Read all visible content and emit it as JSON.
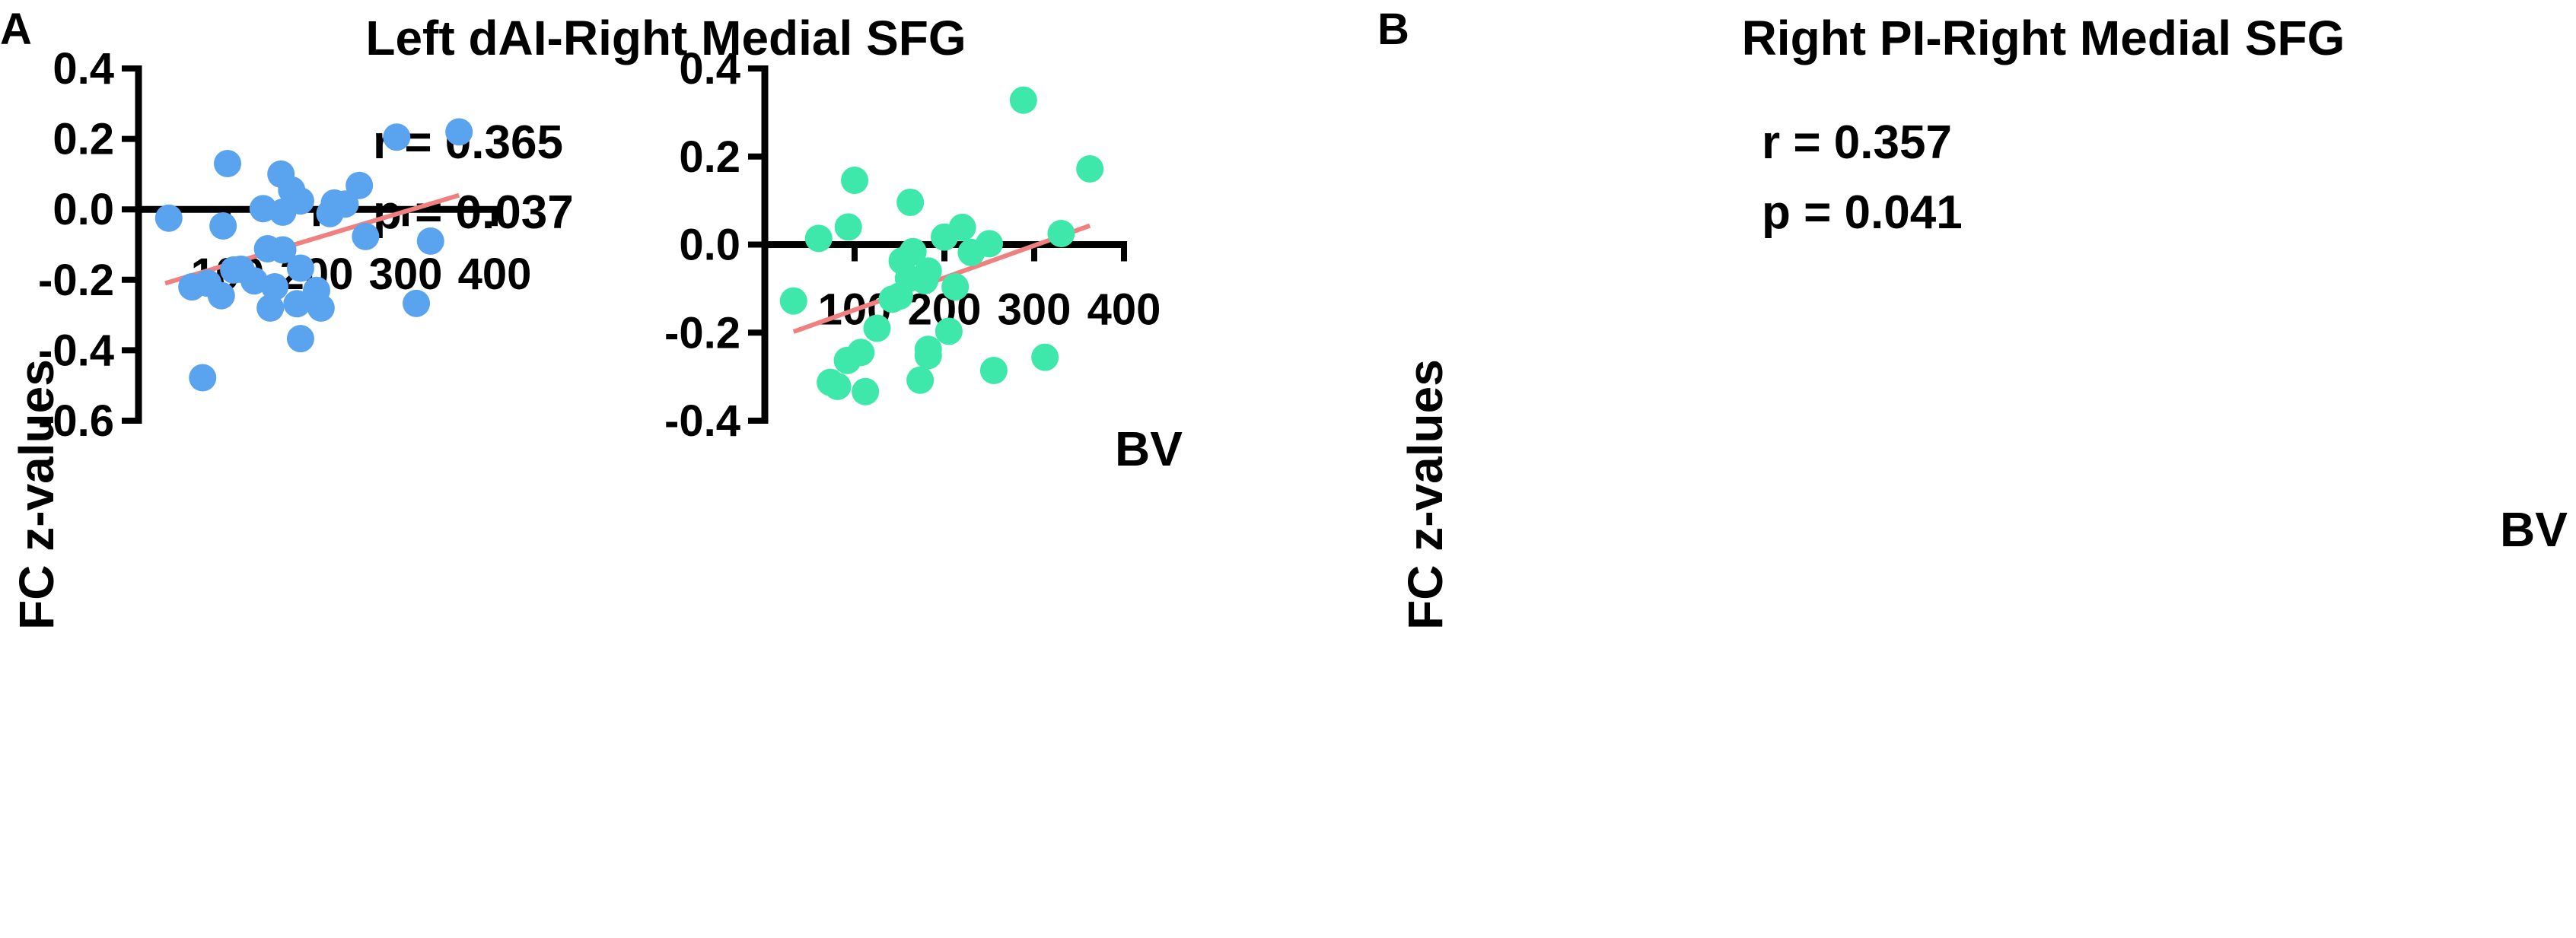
{
  "colors": {
    "panel_a_points": "#5aa3ee",
    "panel_b_points": "#3ee8aa",
    "fit_line": "#f08080",
    "axis": "#000000"
  },
  "chart_data": [
    {
      "panel": "A",
      "type": "scatter",
      "title": "Left dAI-Right Medial SFG",
      "xlabel": "BV",
      "ylabel": "FC z-values",
      "stat_r": "r = 0.365",
      "stat_p": "p = 0.037",
      "xlim": [
        0,
        400
      ],
      "ylim": [
        -0.6,
        0.4
      ],
      "xticks": [
        100,
        200,
        300,
        400
      ],
      "xtick_labels": [
        "100",
        "200",
        "300",
        "400"
      ],
      "yticks": [
        0.4,
        0.2,
        0.0,
        -0.2,
        -0.4,
        -0.6
      ],
      "ytick_labels": [
        "0.4",
        "0.2",
        "0.0",
        "-0.2",
        "-0.4",
        "-0.6"
      ],
      "points": [
        {
          "x": 34,
          "y": -0.025
        },
        {
          "x": 95,
          "y": -0.047
        },
        {
          "x": 100,
          "y": 0.13
        },
        {
          "x": 160,
          "y": 0.1
        },
        {
          "x": 172,
          "y": 0.055
        },
        {
          "x": 182,
          "y": 0.024
        },
        {
          "x": 140,
          "y": 0.002
        },
        {
          "x": 162,
          "y": -0.008
        },
        {
          "x": 220,
          "y": 0.018
        },
        {
          "x": 232,
          "y": 0.015
        },
        {
          "x": 248,
          "y": 0.068
        },
        {
          "x": 215,
          "y": -0.012
        },
        {
          "x": 255,
          "y": -0.077
        },
        {
          "x": 290,
          "y": 0.205
        },
        {
          "x": 360,
          "y": 0.22
        },
        {
          "x": 145,
          "y": -0.112
        },
        {
          "x": 162,
          "y": -0.115
        },
        {
          "x": 328,
          "y": -0.09
        },
        {
          "x": 107,
          "y": -0.172
        },
        {
          "x": 115,
          "y": -0.17
        },
        {
          "x": 130,
          "y": -0.203
        },
        {
          "x": 182,
          "y": -0.167
        },
        {
          "x": 60,
          "y": -0.22
        },
        {
          "x": 78,
          "y": -0.21
        },
        {
          "x": 93,
          "y": -0.245
        },
        {
          "x": 153,
          "y": -0.22
        },
        {
          "x": 200,
          "y": -0.23
        },
        {
          "x": 148,
          "y": -0.28
        },
        {
          "x": 178,
          "y": -0.268
        },
        {
          "x": 205,
          "y": -0.28
        },
        {
          "x": 312,
          "y": -0.267
        },
        {
          "x": 182,
          "y": -0.367
        },
        {
          "x": 72,
          "y": -0.478
        }
      ],
      "fit": {
        "x1": 30,
        "y1": -0.21,
        "x2": 360,
        "y2": 0.04
      }
    },
    {
      "panel": "B",
      "type": "scatter",
      "title": "Right PI-Right Medial SFG",
      "xlabel": "BV",
      "ylabel": "FC z-values",
      "stat_r": "r = 0.357",
      "stat_p": "p = 0.041",
      "xlim": [
        0,
        400
      ],
      "ylim": [
        -0.4,
        0.4
      ],
      "xticks": [
        100,
        200,
        300,
        400
      ],
      "xtick_labels": [
        "100",
        "200",
        "300",
        "400"
      ],
      "yticks": [
        0.4,
        0.2,
        0.0,
        -0.2,
        -0.4
      ],
      "ytick_labels": [
        "0.4",
        "0.2",
        "0.0",
        "-0.2",
        "-0.4"
      ],
      "points": [
        {
          "x": 60,
          "y": 0.014
        },
        {
          "x": 93,
          "y": 0.04
        },
        {
          "x": 100,
          "y": 0.146
        },
        {
          "x": 162,
          "y": 0.096
        },
        {
          "x": 200,
          "y": 0.017
        },
        {
          "x": 220,
          "y": 0.039
        },
        {
          "x": 250,
          "y": 0.002
        },
        {
          "x": 288,
          "y": 0.328
        },
        {
          "x": 330,
          "y": 0.025
        },
        {
          "x": 362,
          "y": 0.172
        },
        {
          "x": 165,
          "y": -0.016
        },
        {
          "x": 153,
          "y": -0.037
        },
        {
          "x": 230,
          "y": -0.018
        },
        {
          "x": 160,
          "y": -0.077
        },
        {
          "x": 182,
          "y": -0.06
        },
        {
          "x": 178,
          "y": -0.082
        },
        {
          "x": 212,
          "y": -0.096
        },
        {
          "x": 150,
          "y": -0.117
        },
        {
          "x": 142,
          "y": -0.124
        },
        {
          "x": 32,
          "y": -0.128
        },
        {
          "x": 125,
          "y": -0.19
        },
        {
          "x": 205,
          "y": -0.197
        },
        {
          "x": 182,
          "y": -0.238
        },
        {
          "x": 182,
          "y": -0.252
        },
        {
          "x": 107,
          "y": -0.245
        },
        {
          "x": 92,
          "y": -0.263
        },
        {
          "x": 312,
          "y": -0.256
        },
        {
          "x": 255,
          "y": -0.286
        },
        {
          "x": 173,
          "y": -0.308
        },
        {
          "x": 73,
          "y": -0.313
        },
        {
          "x": 81,
          "y": -0.322
        },
        {
          "x": 112,
          "y": -0.334
        }
      ],
      "fit": {
        "x1": 32,
        "y1": -0.198,
        "x2": 362,
        "y2": 0.043
      }
    }
  ]
}
